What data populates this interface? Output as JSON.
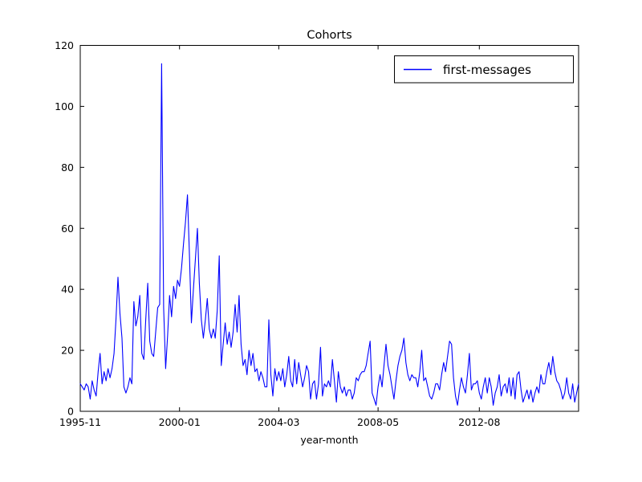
{
  "figure": {
    "title": "Cohorts",
    "xlabel": "year-month",
    "legend": {
      "position": "upper right",
      "entries": [
        {
          "label": "first-messages",
          "color": "#0000ff"
        }
      ]
    }
  },
  "colors": {
    "line": "#0000ff",
    "frame": "#000000",
    "background": "#ffffff",
    "text": "#000000"
  },
  "chart_data": {
    "type": "line",
    "title": "Cohorts",
    "xlabel": "year-month",
    "ylabel": "",
    "legend": [
      "first-messages"
    ],
    "legend_position": "upper right",
    "grid": false,
    "x_start": "1995-11",
    "x_end": "2016-10",
    "x_frequency": "monthly",
    "ylim": [
      0,
      120
    ],
    "yticks": [
      0,
      20,
      40,
      60,
      80,
      100,
      120
    ],
    "xticks": [
      {
        "label": "1995-11",
        "month_index": 0
      },
      {
        "label": "2000-01",
        "month_index": 50
      },
      {
        "label": "2004-03",
        "month_index": 100
      },
      {
        "label": "2008-05",
        "month_index": 150
      },
      {
        "label": "2012-08",
        "month_index": 201
      }
    ],
    "series": [
      {
        "name": "first-messages",
        "color": "#0000ff",
        "values": [
          9,
          8,
          7,
          9,
          8,
          4,
          10,
          7,
          5,
          13,
          19,
          9,
          13,
          10,
          14,
          11,
          14,
          19,
          30,
          44,
          32,
          24,
          8,
          6,
          8,
          11,
          9,
          36,
          28,
          31,
          38,
          19,
          17,
          30,
          42,
          23,
          19,
          18,
          26,
          34,
          35,
          114,
          34,
          14,
          25,
          38,
          31,
          41,
          37,
          43,
          41,
          47,
          55,
          62,
          71,
          51,
          29,
          40,
          50,
          60,
          42,
          30,
          24,
          30,
          37,
          27,
          24,
          27,
          24,
          33,
          51,
          15,
          22,
          29,
          22,
          26,
          21,
          26,
          35,
          26,
          38,
          22,
          15,
          17,
          12,
          20,
          15,
          19,
          13,
          14,
          10,
          13,
          11,
          8,
          8,
          30,
          12,
          5,
          14,
          10,
          13,
          10,
          14,
          8,
          12,
          18,
          10,
          8,
          17,
          9,
          16,
          12,
          8,
          11,
          15,
          13,
          4,
          9,
          10,
          4,
          9,
          21,
          5,
          9,
          8,
          10,
          8,
          17,
          10,
          3,
          13,
          8,
          6,
          8,
          5,
          7,
          7,
          4,
          6,
          11,
          10,
          12,
          13,
          13,
          15,
          19,
          23,
          6,
          4,
          2,
          8,
          12,
          8,
          15,
          22,
          15,
          12,
          8,
          4,
          10,
          15,
          18,
          20,
          24,
          16,
          12,
          10,
          12,
          11,
          11,
          8,
          13,
          20,
          10,
          11,
          8,
          5,
          4,
          6,
          9,
          9,
          7,
          12,
          16,
          13,
          18,
          23,
          22,
          11,
          5,
          2,
          7,
          11,
          8,
          6,
          12,
          19,
          7,
          9,
          9,
          10,
          6,
          4,
          8,
          11,
          6,
          11,
          8,
          2,
          6,
          8,
          12,
          5,
          8,
          9,
          6,
          11,
          5,
          11,
          4,
          12,
          13,
          7,
          3,
          5,
          7,
          4,
          7,
          3,
          6,
          8,
          6,
          12,
          9,
          9,
          13,
          16,
          12,
          18,
          13,
          10,
          9,
          7,
          4,
          6,
          11,
          6,
          4,
          9,
          3,
          6,
          9
        ]
      }
    ]
  }
}
